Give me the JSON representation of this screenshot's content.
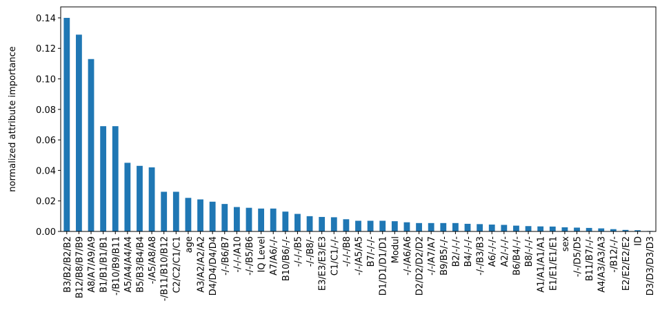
{
  "chart_data": {
    "type": "bar",
    "y_label": "normalized attribute importance",
    "categories": [
      "B3/B2/B2/B2",
      "B12/B8/B7/B9",
      "A8/A7/A9/A9",
      "B1/B1/B1/B1",
      "-/B10/B9/B11",
      "A5/A4/A4/A4",
      "B5/B3/B4/B4",
      "-/A5/A8/A8",
      "-/B11/B10/B12",
      "C2/C2/C1/C1",
      "age",
      "A3/A2/A2/A2",
      "D4/D4/D4/D4",
      "-/-/B6/B7",
      "-/-/-/A10",
      "-/-/B5/B6",
      "IQ Level",
      "A7/A6/-/-",
      "B10/B6/-/-",
      "-/-/-/B5",
      "-/-/B8/-",
      "E3/E3/E3/E3",
      "C1/C1/-/-",
      "-/-/-/B8",
      "-/-/A5/A5",
      "B7/-/-/-",
      "D1/D1/D1/D1",
      "Modul",
      "-/-/A6/A6",
      "D2/D2/D2/D2",
      "-/-/A7/A7",
      "B9/B5/-/-",
      "B2/-/-/-",
      "B4/-/-/-",
      "-/-/B3/B3",
      "A6/-/-/-",
      "A2/-/-/-",
      "B6/B4/-/-",
      "B8/-/-/-",
      "A1/A1/A1/A1",
      "E1/E1/E1/E1",
      "sex",
      "-/-/D5/D5",
      "B11/B7/-/-",
      "A4/A3/A3/A3",
      "-/B12/-/-",
      "E2/E2/E2/E2",
      "ID",
      "D3/D3/D3/D3"
    ],
    "values": [
      0.14,
      0.129,
      0.113,
      0.069,
      0.069,
      0.045,
      0.043,
      0.042,
      0.026,
      0.026,
      0.022,
      0.021,
      0.0195,
      0.018,
      0.016,
      0.0155,
      0.015,
      0.015,
      0.013,
      0.0115,
      0.01,
      0.0095,
      0.0093,
      0.008,
      0.007,
      0.007,
      0.007,
      0.0067,
      0.006,
      0.0055,
      0.0055,
      0.0055,
      0.0055,
      0.005,
      0.0048,
      0.0045,
      0.0043,
      0.0038,
      0.0035,
      0.0033,
      0.0032,
      0.0027,
      0.0025,
      0.0023,
      0.002,
      0.0015,
      0.001,
      0.0008,
      0.0003
    ],
    "color": "#1f77b4",
    "ylim": [
      0,
      0.1472
    ],
    "yticks": [
      {
        "value": 0,
        "label": "0.00"
      },
      {
        "value": 0.02,
        "label": "0.02"
      },
      {
        "value": 0.04,
        "label": "0.04"
      },
      {
        "value": 0.06,
        "label": "0.06"
      },
      {
        "value": 0.08,
        "label": "0.08"
      },
      {
        "value": 0.1,
        "label": "0.10"
      },
      {
        "value": 0.12,
        "label": "0.12"
      },
      {
        "value": 0.14,
        "label": "0.14"
      }
    ]
  }
}
